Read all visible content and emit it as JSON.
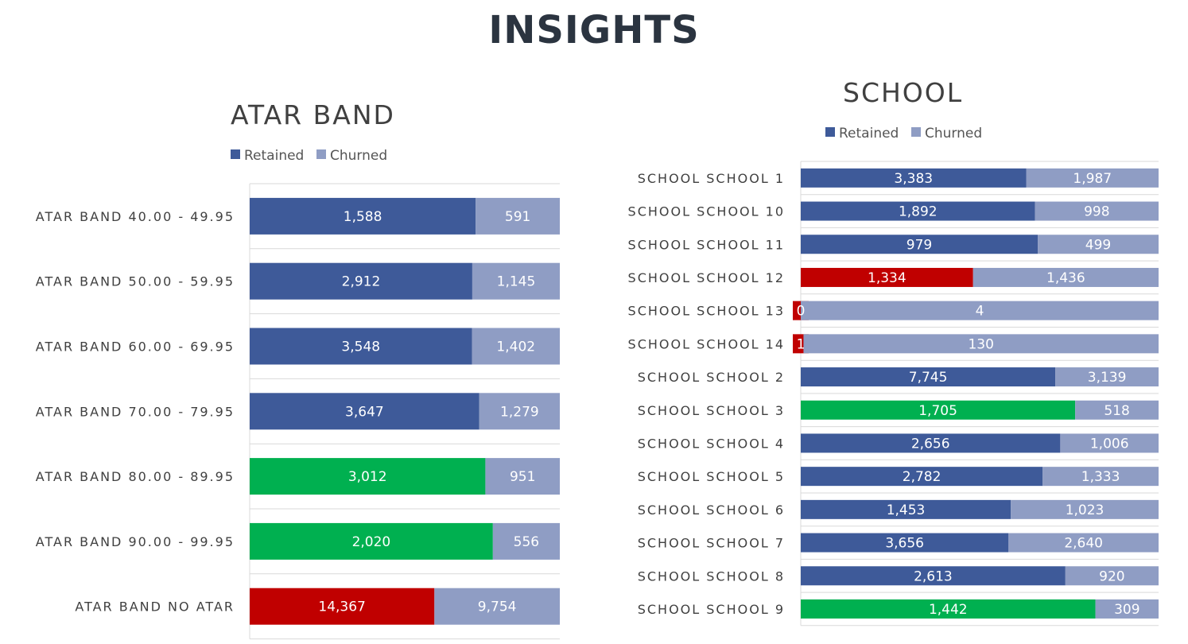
{
  "page_title": "INSIGHTS",
  "colors": {
    "retained": "#3e5a99",
    "churned": "#8f9dc4",
    "good": "#00b050",
    "bad": "#c00000"
  },
  "chart_data": [
    {
      "type": "bar",
      "stacked": "percent",
      "orientation": "horizontal",
      "title": "ATAR BAND",
      "legend": [
        "Retained",
        "Churned"
      ],
      "legend_position": "top-left",
      "categories": [
        "ATAR BAND 40.00 - 49.95",
        "ATAR BAND 50.00 - 59.95",
        "ATAR BAND 60.00 - 69.95",
        "ATAR BAND 70.00 - 79.95",
        "ATAR BAND 80.00 - 89.95",
        "ATAR BAND 90.00 - 99.95",
        "ATAR BAND NO ATAR"
      ],
      "series": [
        {
          "name": "Retained",
          "values": [
            1588,
            2912,
            3548,
            3647,
            3012,
            2020,
            14367
          ]
        },
        {
          "name": "Churned",
          "values": [
            591,
            1145,
            1402,
            1279,
            951,
            556,
            9754
          ]
        }
      ],
      "value_labels": {
        "Retained": [
          "1,588",
          "2,912",
          "3,548",
          "3,647",
          "3,012",
          "2,020",
          "14,367"
        ],
        "Churned": [
          "591",
          "1,145",
          "1,402",
          "1,279",
          "951",
          "556",
          "9,754"
        ]
      },
      "retained_highlight": [
        "none",
        "none",
        "none",
        "none",
        "good",
        "good",
        "bad"
      ],
      "grid": true
    },
    {
      "type": "bar",
      "stacked": "percent",
      "orientation": "horizontal",
      "title": "SCHOOL",
      "legend": [
        "Retained",
        "Churned"
      ],
      "legend_position": "top-center",
      "categories": [
        "SCHOOL SCHOOL 1",
        "SCHOOL SCHOOL 10",
        "SCHOOL SCHOOL 11",
        "SCHOOL SCHOOL 12",
        "SCHOOL SCHOOL 13",
        "SCHOOL SCHOOL 14",
        "SCHOOL SCHOOL 2",
        "SCHOOL SCHOOL 3",
        "SCHOOL SCHOOL 4",
        "SCHOOL SCHOOL 5",
        "SCHOOL SCHOOL 6",
        "SCHOOL SCHOOL 7",
        "SCHOOL SCHOOL 8",
        "SCHOOL SCHOOL 9"
      ],
      "series": [
        {
          "name": "Retained",
          "values": [
            3383,
            1892,
            979,
            1334,
            0,
            1,
            7745,
            1705,
            2656,
            2782,
            1453,
            3656,
            2613,
            1442
          ]
        },
        {
          "name": "Churned",
          "values": [
            1987,
            998,
            499,
            1436,
            4,
            130,
            3139,
            518,
            1006,
            1333,
            1023,
            2640,
            920,
            309
          ]
        }
      ],
      "value_labels": {
        "Retained": [
          "3,383",
          "1,892",
          "979",
          "1,334",
          "0",
          "1",
          "7,745",
          "1,705",
          "2,656",
          "2,782",
          "1,453",
          "3,656",
          "2,613",
          "1,442"
        ],
        "Churned": [
          "1,987",
          "998",
          "499",
          "1,436",
          "4",
          "130",
          "3,139",
          "518",
          "1,006",
          "1,333",
          "1,023",
          "2,640",
          "920",
          "309"
        ]
      },
      "retained_highlight": [
        "none",
        "none",
        "none",
        "bad",
        "bad",
        "bad",
        "none",
        "good",
        "none",
        "none",
        "none",
        "none",
        "none",
        "good"
      ],
      "grid": true
    }
  ]
}
